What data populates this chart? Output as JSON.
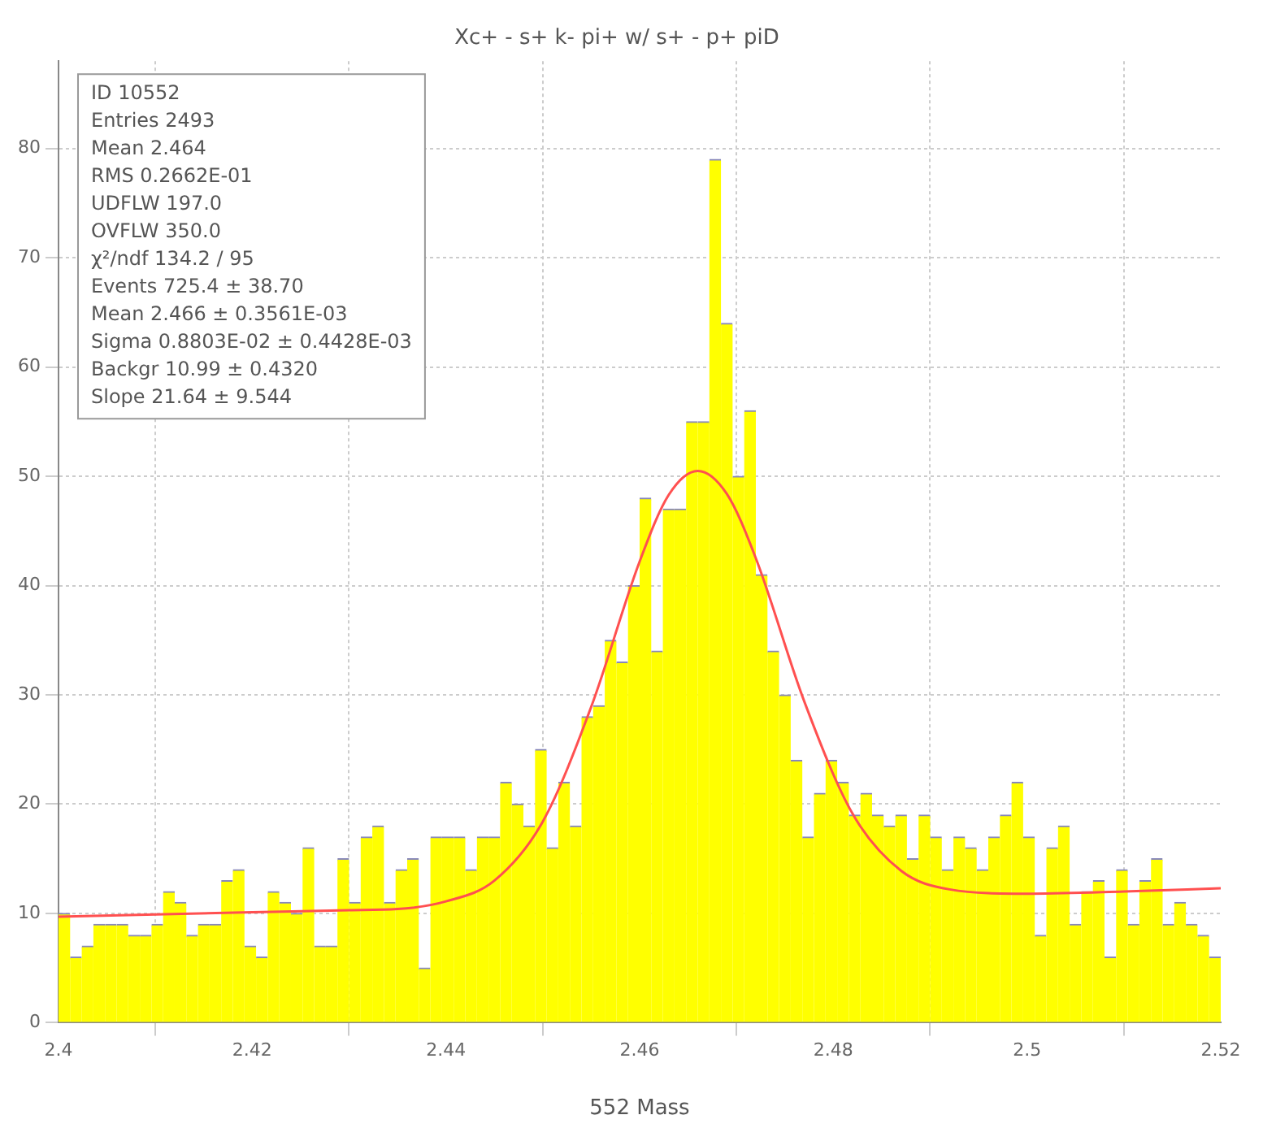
{
  "chart_data": {
    "type": "histogram",
    "title": "Xc+ - s+ k- pi+ w/ s+ - p+ piD",
    "xlabel": "552 Mass",
    "xlim": [
      2.4,
      2.52
    ],
    "xticks": [
      2.4,
      2.42,
      2.44,
      2.46,
      2.48,
      2.5,
      2.52
    ],
    "ylim": [
      0,
      88
    ],
    "yticks": [
      0,
      10,
      20,
      30,
      40,
      50,
      60,
      70,
      80
    ],
    "grid": true,
    "series": [
      {
        "color": "#ffff00",
        "bins": [
          2.4,
          2.4012,
          2.4024,
          2.4036,
          2.4048,
          2.406,
          2.4072,
          2.4084,
          2.4096,
          2.4108,
          2.412,
          2.4132,
          2.4144,
          2.4156,
          2.4168,
          2.418,
          2.4192,
          2.4204,
          2.4216,
          2.4228,
          2.424,
          2.4252,
          2.4264,
          2.4276,
          2.4288,
          2.43,
          2.4312,
          2.4324,
          2.4336,
          2.4348,
          2.436,
          2.4372,
          2.4384,
          2.4396,
          2.4408,
          2.442,
          2.4432,
          2.4444,
          2.4456,
          2.4468,
          2.448,
          2.4492,
          2.4504,
          2.4516,
          2.4528,
          2.454,
          2.4552,
          2.4564,
          2.4576,
          2.4588,
          2.46,
          2.4612,
          2.4624,
          2.4636,
          2.4648,
          2.466,
          2.4672,
          2.4684,
          2.4696,
          2.4708,
          2.472,
          2.4732,
          2.4744,
          2.4756,
          2.4768,
          2.478,
          2.4792,
          2.4804,
          2.4816,
          2.4828,
          2.484,
          2.4852,
          2.4864,
          2.4876,
          2.4888,
          2.49,
          2.4912,
          2.4924,
          2.4936,
          2.4948,
          2.496,
          2.4972,
          2.4984,
          2.4996,
          2.5008,
          2.502,
          2.5032,
          2.5044,
          2.5056,
          2.5068,
          2.508,
          2.5092,
          2.5104,
          2.5116,
          2.5128,
          2.514,
          2.5152,
          2.5164,
          2.5176,
          2.5188,
          2.52
        ],
        "values": [
          10,
          6,
          7,
          9,
          9,
          9,
          8,
          8,
          9,
          12,
          11,
          8,
          9,
          9,
          13,
          14,
          7,
          6,
          12,
          11,
          10,
          16,
          7,
          7,
          15,
          11,
          17,
          18,
          11,
          14,
          15,
          5,
          17,
          17,
          17,
          14,
          17,
          17,
          22,
          20,
          18,
          25,
          16,
          22,
          18,
          28,
          29,
          35,
          33,
          40,
          48,
          34,
          47,
          47,
          55,
          55,
          79,
          64,
          50,
          56,
          41,
          34,
          30,
          24,
          17,
          21,
          24,
          22,
          19,
          21,
          19,
          18,
          19,
          15,
          19,
          17,
          14,
          17,
          16,
          14,
          17,
          19,
          22,
          17,
          8,
          16,
          18,
          9,
          12,
          13,
          6,
          14,
          9,
          13,
          15,
          9,
          11,
          9,
          8,
          6
        ]
      },
      {
        "type": "line",
        "color": "#ff5050",
        "x": [
          2.4,
          2.41,
          2.42,
          2.43,
          2.435,
          2.44,
          2.445,
          2.45,
          2.455,
          2.46,
          2.463,
          2.466,
          2.469,
          2.472,
          2.477,
          2.482,
          2.487,
          2.492,
          2.5,
          2.51,
          2.52
        ],
        "values": [
          9.7,
          9.9,
          10.1,
          10.3,
          10.4,
          11.1,
          13,
          18.4,
          28.9,
          42.2,
          48.3,
          50.5,
          48.4,
          42.5,
          29.4,
          19.1,
          13.9,
          12.2,
          11.8,
          12,
          12.3
        ]
      }
    ],
    "annotations": [
      "ID 10552",
      "Entries 2493",
      "Mean 2.464",
      "RMS 0.2662E-01",
      "UDFLW 197.0",
      "OVFLW 350.0",
      "χ²/ndf 134.2 / 95",
      "Events 725.4 ± 38.70",
      "Mean 2.466 ± 0.3561E-03",
      "Sigma 0.8803E-02 ± 0.4428E-03",
      "Backgr 10.99 ± 0.4320",
      "Slope 21.64 ± 9.544"
    ]
  }
}
